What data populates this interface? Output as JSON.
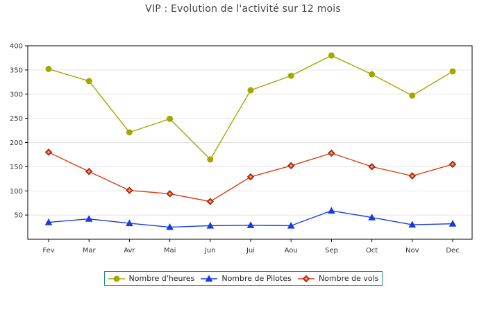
{
  "chart_data": {
    "type": "line",
    "title": "VIP : Evolution de l'activité sur 12 mois",
    "categories": [
      "Fev",
      "Mar",
      "Avr",
      "Mai",
      "Jun",
      "Jui",
      "Aou",
      "Sep",
      "Oct",
      "Nov",
      "Dec"
    ],
    "series": [
      {
        "name": "Nombre d'heures",
        "color": "#a6a600",
        "marker": "circle",
        "values": [
          352,
          327,
          221,
          249,
          165,
          308,
          338,
          380,
          341,
          297,
          347
        ]
      },
      {
        "name": "Nombre de Pilotes",
        "color": "#1a3ae0",
        "marker": "triangle",
        "values": [
          35,
          42,
          33,
          25,
          28,
          29,
          28,
          59,
          45,
          30,
          32
        ]
      },
      {
        "name": "Nombre de vols",
        "color": "#d94010",
        "marker": "diamond",
        "values": [
          180,
          140,
          101,
          94,
          78,
          129,
          152,
          178,
          150,
          131,
          155
        ]
      }
    ],
    "ylim": [
      0,
      400
    ],
    "yticks": [
      50,
      100,
      150,
      200,
      250,
      300,
      350,
      400
    ],
    "grid": true,
    "legend_position": "bottom"
  }
}
